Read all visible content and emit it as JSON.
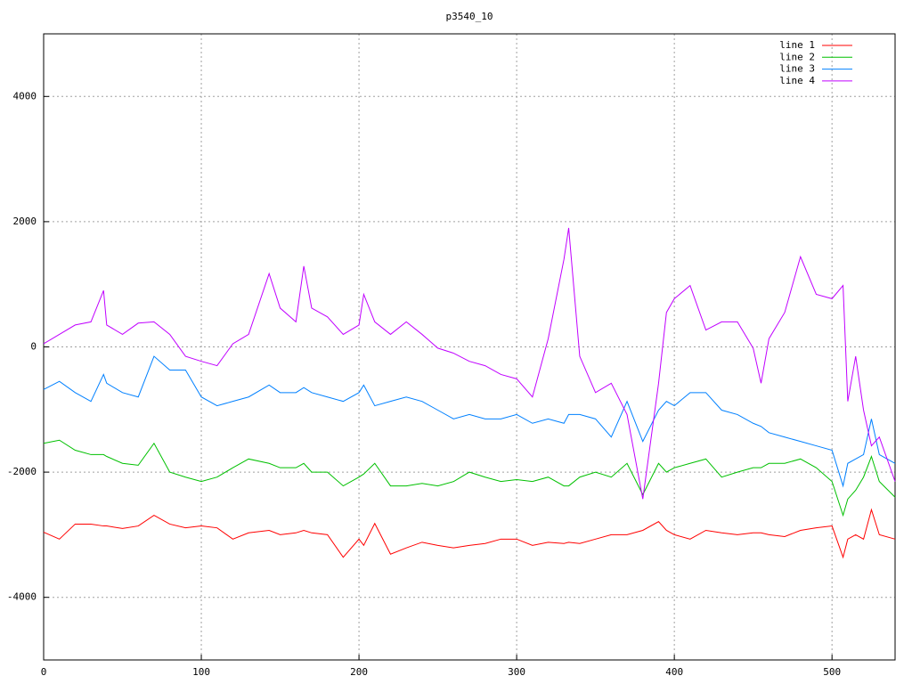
{
  "chart_data": {
    "type": "line",
    "title": "p3540_10",
    "x": [
      0,
      10,
      20,
      30,
      38,
      40,
      50,
      60,
      70,
      80,
      90,
      100,
      110,
      120,
      130,
      143,
      150,
      160,
      165,
      170,
      180,
      190,
      200,
      203,
      210,
      220,
      230,
      240,
      250,
      260,
      270,
      280,
      290,
      300,
      310,
      320,
      330,
      333,
      340,
      350,
      360,
      370,
      380,
      390,
      395,
      400,
      410,
      420,
      430,
      440,
      450,
      455,
      460,
      470,
      480,
      490,
      500,
      507,
      510,
      515,
      520,
      525,
      530,
      540
    ],
    "xlim": [
      0,
      540
    ],
    "xticks": [
      0,
      100,
      200,
      300,
      400,
      500
    ],
    "ylim": [
      -5000,
      5000
    ],
    "yticks": [
      -4000,
      -2000,
      0,
      2000,
      4000
    ],
    "grid": true,
    "legend": "upper right",
    "series": [
      {
        "name": "line 1",
        "color": "#ff0000",
        "values": [
          -2960,
          -3070,
          -2830,
          -2830,
          -2860,
          -2860,
          -2900,
          -2860,
          -2690,
          -2830,
          -2890,
          -2860,
          -2890,
          -3070,
          -2970,
          -2930,
          -3000,
          -2970,
          -2930,
          -2970,
          -3000,
          -3360,
          -3070,
          -3170,
          -2820,
          -3310,
          -3210,
          -3120,
          -3170,
          -3210,
          -3170,
          -3140,
          -3070,
          -3070,
          -3170,
          -3120,
          -3140,
          -3120,
          -3140,
          -3070,
          -3000,
          -3000,
          -2930,
          -2790,
          -2930,
          -3000,
          -3070,
          -2930,
          -2970,
          -3000,
          -2970,
          -2970,
          -3000,
          -3030,
          -2930,
          -2890,
          -2860,
          -3360,
          -3070,
          -3000,
          -3070,
          -2600,
          -3000,
          -3070
        ]
      },
      {
        "name": "line 2",
        "color": "#00c000",
        "values": [
          -1540,
          -1490,
          -1650,
          -1720,
          -1720,
          -1750,
          -1860,
          -1890,
          -1540,
          -2000,
          -2080,
          -2150,
          -2080,
          -1930,
          -1790,
          -1860,
          -1930,
          -1930,
          -1860,
          -2000,
          -2000,
          -2220,
          -2080,
          -2030,
          -1860,
          -2220,
          -2220,
          -2180,
          -2220,
          -2150,
          -2000,
          -2080,
          -2150,
          -2120,
          -2150,
          -2080,
          -2220,
          -2220,
          -2080,
          -2000,
          -2080,
          -1860,
          -2360,
          -1860,
          -2000,
          -1930,
          -1860,
          -1790,
          -2080,
          -2000,
          -1930,
          -1930,
          -1860,
          -1860,
          -1790,
          -1930,
          -2150,
          -2690,
          -2430,
          -2290,
          -2080,
          -1750,
          -2150,
          -2400
        ]
      },
      {
        "name": "line 3",
        "color": "#0080ff",
        "values": [
          -680,
          -550,
          -730,
          -870,
          -440,
          -580,
          -730,
          -800,
          -150,
          -370,
          -370,
          -800,
          -940,
          -870,
          -800,
          -610,
          -730,
          -730,
          -650,
          -730,
          -800,
          -870,
          -730,
          -610,
          -940,
          -870,
          -800,
          -870,
          -1010,
          -1150,
          -1080,
          -1150,
          -1150,
          -1080,
          -1220,
          -1150,
          -1220,
          -1080,
          -1080,
          -1150,
          -1440,
          -870,
          -1510,
          -1010,
          -870,
          -940,
          -730,
          -730,
          -1010,
          -1080,
          -1220,
          -1270,
          -1370,
          -1440,
          -1510,
          -1580,
          -1650,
          -2220,
          -1860,
          -1790,
          -1720,
          -1150,
          -1720,
          -1860
        ]
      },
      {
        "name": "line 4",
        "color": "#c000ff",
        "values": [
          50,
          200,
          350,
          400,
          900,
          350,
          200,
          380,
          400,
          200,
          -150,
          -230,
          -300,
          50,
          200,
          1170,
          620,
          400,
          1290,
          620,
          480,
          200,
          350,
          840,
          400,
          200,
          400,
          200,
          -20,
          -100,
          -230,
          -300,
          -440,
          -510,
          -800,
          130,
          1400,
          1900,
          -150,
          -730,
          -580,
          -1080,
          -2430,
          -580,
          550,
          770,
          980,
          270,
          400,
          400,
          -20,
          -580,
          130,
          550,
          1440,
          840,
          770,
          980,
          -870,
          -150,
          -1010,
          -1580,
          -1440,
          -2150
        ]
      }
    ]
  }
}
